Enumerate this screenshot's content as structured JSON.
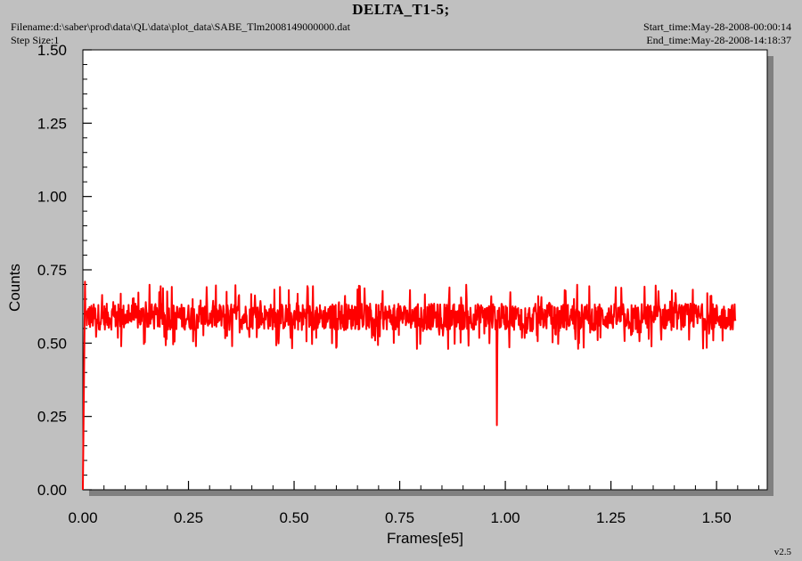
{
  "header": {
    "title": "DELTA_T1-5;",
    "filename": "Filename:d:\\saber\\prod\\data\\QL\\data\\plot_data\\SABE_Tlm2008149000000.dat",
    "step_size": "Step Size:1",
    "start_time": "Start_time:May-28-2008-00:00:14",
    "end_time": "End_time:May-28-2008-14:18:37",
    "version": "v2.5"
  },
  "colors": {
    "background": "#c0c0c0",
    "plot_area": "#ffffff",
    "series": "#ff0000",
    "shadow": "#808080"
  },
  "chart_data": {
    "type": "line",
    "title": "DELTA_T1-5;",
    "xlabel": "Frames[e5]",
    "ylabel": "Counts",
    "xlim": [
      0,
      1.62
    ],
    "ylim": [
      0,
      1.5
    ],
    "x_ticks": [
      "0.00",
      "0.25",
      "0.50",
      "0.75",
      "1.00",
      "1.25",
      "1.50"
    ],
    "y_ticks": [
      "0.00",
      "0.25",
      "0.50",
      "0.75",
      "1.00",
      "1.25",
      "1.50"
    ],
    "grid": false,
    "series": [
      {
        "color": "#ff0000",
        "x_range": [
          0,
          1.545
        ],
        "baseline": 0.59,
        "noise_band": [
          0.48,
          0.7
        ],
        "features": [
          {
            "x": 0.0,
            "y": 0.0
          },
          {
            "x": 0.005,
            "y": 0.71
          },
          {
            "x": 0.98,
            "y": 0.22
          }
        ]
      }
    ]
  }
}
